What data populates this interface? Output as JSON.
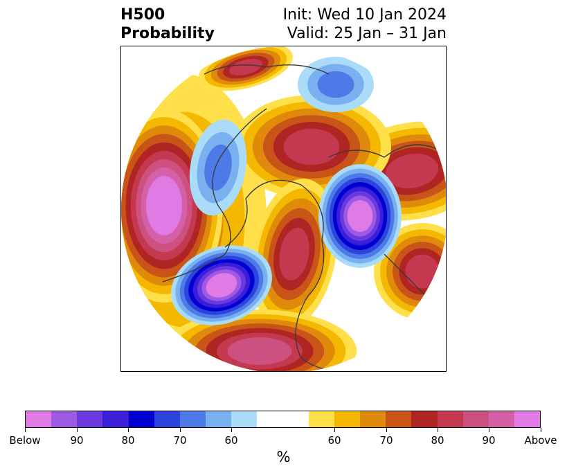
{
  "header": {
    "title_line1": "H500",
    "title_line2": "Probability",
    "init": "Init: Wed 10 Jan 2024",
    "valid": "Valid: 25 Jan – 31 Jan"
  },
  "colorbar": {
    "colors": [
      "#e07ae4",
      "#9f5ae4",
      "#6a3ae0",
      "#3a1ed8",
      "#0000d2",
      "#2a44dc",
      "#4e7ae8",
      "#78b0f0",
      "#aadcfa",
      "#ffffff",
      "#ffffff",
      "#ffe04a",
      "#f4b800",
      "#e08a0c",
      "#c85418",
      "#b02424",
      "#c43850",
      "#cc5080",
      "#d660a8",
      "#e07ae4"
    ],
    "tick_labels": [
      "Below",
      "90",
      "80",
      "70",
      "60",
      "60",
      "70",
      "80",
      "90",
      "Above"
    ],
    "label": "%"
  },
  "map": {
    "palette": {
      "below_60": "#aadcfa",
      "below_65": "#78b0f0",
      "below_70": "#4e7ae8",
      "below_75": "#2a44dc",
      "below_80": "#0000d2",
      "below_85": "#3a1ed8",
      "below_90": "#6a3ae0",
      "below_95": "#9f5ae4",
      "below_max": "#e07ae4",
      "above_55": "#ffe04a",
      "above_60": "#f4b800",
      "above_65": "#e08a0c",
      "above_70": "#c85418",
      "above_75": "#b02424",
      "above_80": "#c43850",
      "above_85": "#cc5080",
      "above_90": "#d660a8",
      "above_max": "#e07ae4",
      "coastline": "#3a3a3a"
    }
  }
}
